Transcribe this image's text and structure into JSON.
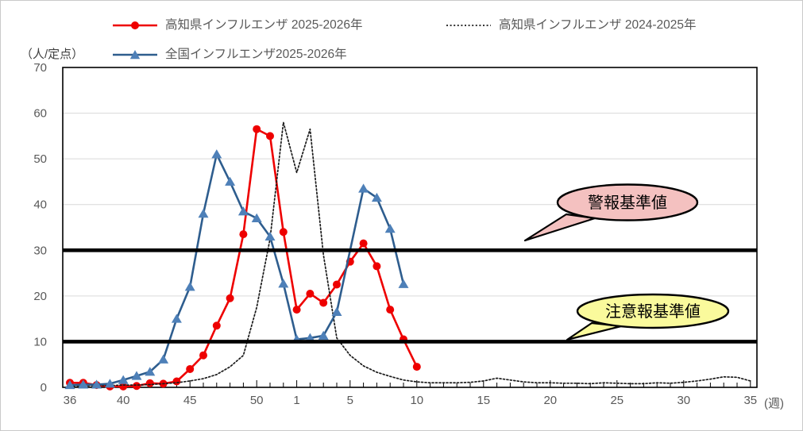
{
  "figure": {
    "y_unit_label": "（人/定点）",
    "x_unit_label": "(週)"
  },
  "legend": {
    "position": "top",
    "items": [
      {
        "key": "kochi_2025_2026",
        "label": "高知県インフルエンザ 2025-2026年",
        "marker": "red-line-circle"
      },
      {
        "key": "kochi_2024_2025",
        "label": "高知県インフルエンザ 2024-2025年",
        "marker": "black-dotted-line"
      },
      {
        "key": "zenkoku_2025_2026",
        "label": "全国インフルエンザ2025-2026年",
        "marker": "blue-line-triangle"
      }
    ]
  },
  "chart_data": {
    "type": "line",
    "title": "",
    "xlabel": "(週)",
    "ylabel": "（人/定点）",
    "ylim": [
      0,
      70
    ],
    "yticks": [
      0,
      10,
      20,
      30,
      40,
      50,
      60,
      70
    ],
    "grid": "horizontal-gray",
    "legend_position": "top",
    "x_weeks": [
      36,
      37,
      38,
      39,
      40,
      41,
      42,
      43,
      44,
      45,
      46,
      47,
      48,
      49,
      50,
      51,
      52,
      1,
      2,
      3,
      4,
      5,
      6,
      7,
      8,
      9,
      10,
      11,
      12,
      13,
      14,
      15,
      16,
      17,
      18,
      19,
      20,
      21,
      22,
      23,
      24,
      25,
      26,
      27,
      28,
      29,
      30,
      31,
      32,
      33,
      34,
      35
    ],
    "x_labeled_ticks": [
      36,
      40,
      45,
      50,
      1,
      5,
      10,
      15,
      20,
      25,
      30,
      35
    ],
    "series": [
      {
        "key": "kochi_2025_2026",
        "name": "高知県インフルエンザ 2025-2026年",
        "color": "#ee0000",
        "marker": "circle",
        "line_style": "solid",
        "values": [
          1.0,
          1.0,
          0.5,
          0.2,
          0.2,
          0.3,
          0.9,
          0.8,
          1.3,
          4.0,
          7.0,
          13.5,
          19.5,
          33.5,
          56.5,
          55.0,
          34.0,
          17.0,
          20.5,
          18.5,
          22.5,
          27.5,
          31.5,
          26.5,
          17.0,
          10.5,
          4.5,
          null,
          null,
          null,
          null,
          null,
          null,
          null,
          null,
          null,
          null,
          null,
          null,
          null,
          null,
          null,
          null,
          null,
          null,
          null,
          null,
          null,
          null,
          null,
          null,
          null
        ]
      },
      {
        "key": "kochi_2024_2025",
        "name": "高知県インフルエンザ 2024-2025年",
        "color": "#1a1a1a",
        "marker": "none",
        "line_style": "dotted",
        "values": [
          0.3,
          0.3,
          0.4,
          0.4,
          0.5,
          0.5,
          0.6,
          0.8,
          1.0,
          1.4,
          1.9,
          2.8,
          4.5,
          7.0,
          17.5,
          32.5,
          58.0,
          47.0,
          56.5,
          29.0,
          10.8,
          7.0,
          4.7,
          3.3,
          2.4,
          1.6,
          1.2,
          1.0,
          1.0,
          1.0,
          1.1,
          1.4,
          2.0,
          1.6,
          1.2,
          1.0,
          1.0,
          0.9,
          0.9,
          0.8,
          1.0,
          0.9,
          0.8,
          0.8,
          1.0,
          0.9,
          1.1,
          1.4,
          1.8,
          2.3,
          2.2,
          1.4
        ]
      },
      {
        "key": "zenkoku_2025_2026",
        "name": "全国インフルエンザ2025-2026年",
        "color": "#2e5d8e",
        "marker": "triangle",
        "marker_color": "#4e80b8",
        "line_style": "solid",
        "values": [
          0.5,
          0.6,
          0.6,
          0.8,
          1.6,
          2.5,
          3.4,
          6.1,
          15.0,
          22.0,
          38.0,
          51.0,
          45.0,
          38.5,
          37.0,
          33.0,
          22.7,
          10.5,
          10.8,
          11.3,
          16.5,
          null,
          43.5,
          41.5,
          34.7,
          22.6,
          null,
          null,
          null,
          null,
          null,
          null,
          null,
          null,
          null,
          null,
          null,
          null,
          null,
          null,
          null,
          null,
          null,
          null,
          null,
          null,
          null,
          null,
          null,
          null,
          null,
          null
        ]
      }
    ],
    "reference_lines": [
      {
        "value": 30,
        "label": "警報基準値",
        "line_color": "#000000",
        "callout_fill": "#f4c1c0"
      },
      {
        "value": 10,
        "label": "注意報基準値",
        "line_color": "#000000",
        "callout_fill": "#fafa9c"
      }
    ]
  }
}
